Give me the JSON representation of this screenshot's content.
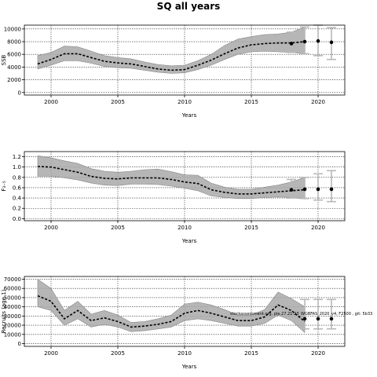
{
  "figure_title": "SQ all years",
  "chart_data": [
    {
      "type": "line",
      "ylabel": "SSB",
      "xlabel": "Years",
      "xlim": [
        1998,
        2022
      ],
      "ylim": [
        -400,
        10600
      ],
      "x_ticks": [
        2000,
        2005,
        2010,
        2015,
        2020
      ],
      "y_ticks": [
        0,
        2000,
        4000,
        6000,
        8000,
        10000
      ],
      "y_tick_labels": [
        "0",
        "2000",
        "4000",
        "6000",
        "8000",
        "10000"
      ],
      "grid": true,
      "series": [
        {
          "x": [
            1999,
            2000,
            2001,
            2002,
            2003,
            2004,
            2005,
            2006,
            2007,
            2008,
            2009,
            2010,
            2011,
            2012,
            2013,
            2014,
            2015,
            2016,
            2017,
            2018,
            2019
          ],
          "values": [
            4500,
            5200,
            6100,
            6100,
            5500,
            4900,
            4650,
            4500,
            4100,
            3700,
            3500,
            3600,
            4300,
            5100,
            6100,
            7000,
            7500,
            7700,
            7800,
            7800,
            8000
          ],
          "upper": [
            5800,
            6300,
            7300,
            7200,
            6500,
            5800,
            5500,
            5300,
            4800,
            4400,
            4200,
            4300,
            5000,
            6000,
            7400,
            8400,
            8800,
            9100,
            9200,
            9500,
            10300
          ],
          "lower": [
            3700,
            4300,
            5000,
            5000,
            4600,
            4100,
            3900,
            3800,
            3500,
            3200,
            3000,
            3100,
            3600,
            4300,
            5200,
            6000,
            6400,
            6500,
            6400,
            6300,
            6100
          ]
        }
      ],
      "projections": [
        {
          "x": 2018,
          "value": 7700,
          "low": 6300,
          "high": 9500
        },
        {
          "x": 2019,
          "value": 8000,
          "low": 6100,
          "high": 10300
        },
        {
          "x": 2020,
          "value": 8100,
          "low": 5800,
          "high": 10600
        },
        {
          "x": 2021,
          "value": 7900,
          "low": 5200,
          "high": 10200
        }
      ]
    },
    {
      "type": "line",
      "ylabel": "F₃₋₅",
      "xlabel": "Years",
      "xlim": [
        1998,
        2022
      ],
      "ylim": [
        -0.04,
        1.3
      ],
      "x_ticks": [
        2000,
        2005,
        2010,
        2015,
        2020
      ],
      "y_ticks": [
        0.0,
        0.2,
        0.4,
        0.6,
        0.8,
        1.0,
        1.2
      ],
      "y_tick_labels": [
        "0.0",
        "0.2",
        "0.4",
        "0.6",
        "0.8",
        "1.0",
        "1.2"
      ],
      "grid": true,
      "series": [
        {
          "x": [
            1999,
            2000,
            2001,
            2002,
            2003,
            2004,
            2005,
            2006,
            2007,
            2008,
            2009,
            2010,
            2011,
            2012,
            2013,
            2014,
            2015,
            2016,
            2017,
            2018,
            2019
          ],
          "values": [
            1.01,
            1.0,
            0.95,
            0.9,
            0.82,
            0.78,
            0.77,
            0.79,
            0.79,
            0.79,
            0.76,
            0.71,
            0.68,
            0.56,
            0.51,
            0.48,
            0.48,
            0.5,
            0.52,
            0.54,
            0.56
          ],
          "upper": [
            1.22,
            1.18,
            1.12,
            1.07,
            0.97,
            0.92,
            0.9,
            0.92,
            0.95,
            0.96,
            0.91,
            0.85,
            0.84,
            0.69,
            0.61,
            0.57,
            0.57,
            0.61,
            0.65,
            0.71,
            0.8
          ],
          "lower": [
            0.82,
            0.82,
            0.79,
            0.75,
            0.69,
            0.65,
            0.64,
            0.67,
            0.67,
            0.66,
            0.63,
            0.59,
            0.54,
            0.44,
            0.41,
            0.39,
            0.39,
            0.41,
            0.42,
            0.41,
            0.38
          ]
        }
      ],
      "projections": [
        {
          "x": 2018,
          "value": 0.56,
          "low": 0.4,
          "high": 0.76
        },
        {
          "x": 2019,
          "value": 0.57,
          "low": 0.39,
          "high": 0.8
        },
        {
          "x": 2020,
          "value": 0.57,
          "low": 0.36,
          "high": 0.87
        },
        {
          "x": 2021,
          "value": 0.57,
          "low": 0.33,
          "high": 0.93
        }
      ]
    },
    {
      "type": "line",
      "ylabel": "Recruits (age 1)",
      "xlabel": "Years",
      "xlim": [
        1998,
        2022
      ],
      "ylim": [
        -3000,
        73000
      ],
      "x_ticks": [
        2000,
        2005,
        2010,
        2015,
        2020
      ],
      "y_ticks": [
        0,
        10000,
        20000,
        30000,
        40000,
        50000,
        60000,
        70000
      ],
      "y_tick_labels": [
        "0",
        "10000",
        "20000",
        "30000",
        "40000",
        "50000",
        "60000",
        "70000"
      ],
      "grid": true,
      "annotation": "stockassessment.org, ple.27.21-23_WGBFAS_2020_v4, F2500 , git: 5b33",
      "series": [
        {
          "x": [
            1999,
            2000,
            2001,
            2002,
            2003,
            2004,
            2005,
            2006,
            2007,
            2008,
            2009,
            2010,
            2011,
            2012,
            2013,
            2014,
            2015,
            2016,
            2017,
            2018,
            2019
          ],
          "values": [
            52000,
            46000,
            27000,
            36000,
            25000,
            28000,
            24000,
            18000,
            19000,
            21000,
            24000,
            33000,
            36000,
            33000,
            29000,
            25000,
            25000,
            29000,
            42000,
            36000,
            24000
          ],
          "upper": [
            70000,
            60000,
            36000,
            46000,
            32000,
            36000,
            31000,
            23000,
            24000,
            27000,
            31000,
            43000,
            45000,
            42000,
            37000,
            31000,
            31000,
            37000,
            56000,
            49000,
            40000
          ],
          "lower": [
            40000,
            36000,
            20000,
            27000,
            18000,
            21000,
            18000,
            13000,
            14000,
            16000,
            18000,
            25000,
            27000,
            25000,
            22000,
            19000,
            19000,
            22000,
            31000,
            25000,
            12000
          ]
        }
      ],
      "projections": [
        {
          "x": 2019,
          "value": 27000,
          "low": 16000,
          "high": 48000
        },
        {
          "x": 2020,
          "value": 27000,
          "low": 16000,
          "high": 48000
        },
        {
          "x": 2021,
          "value": 27000,
          "low": 16000,
          "high": 48000
        }
      ]
    }
  ]
}
